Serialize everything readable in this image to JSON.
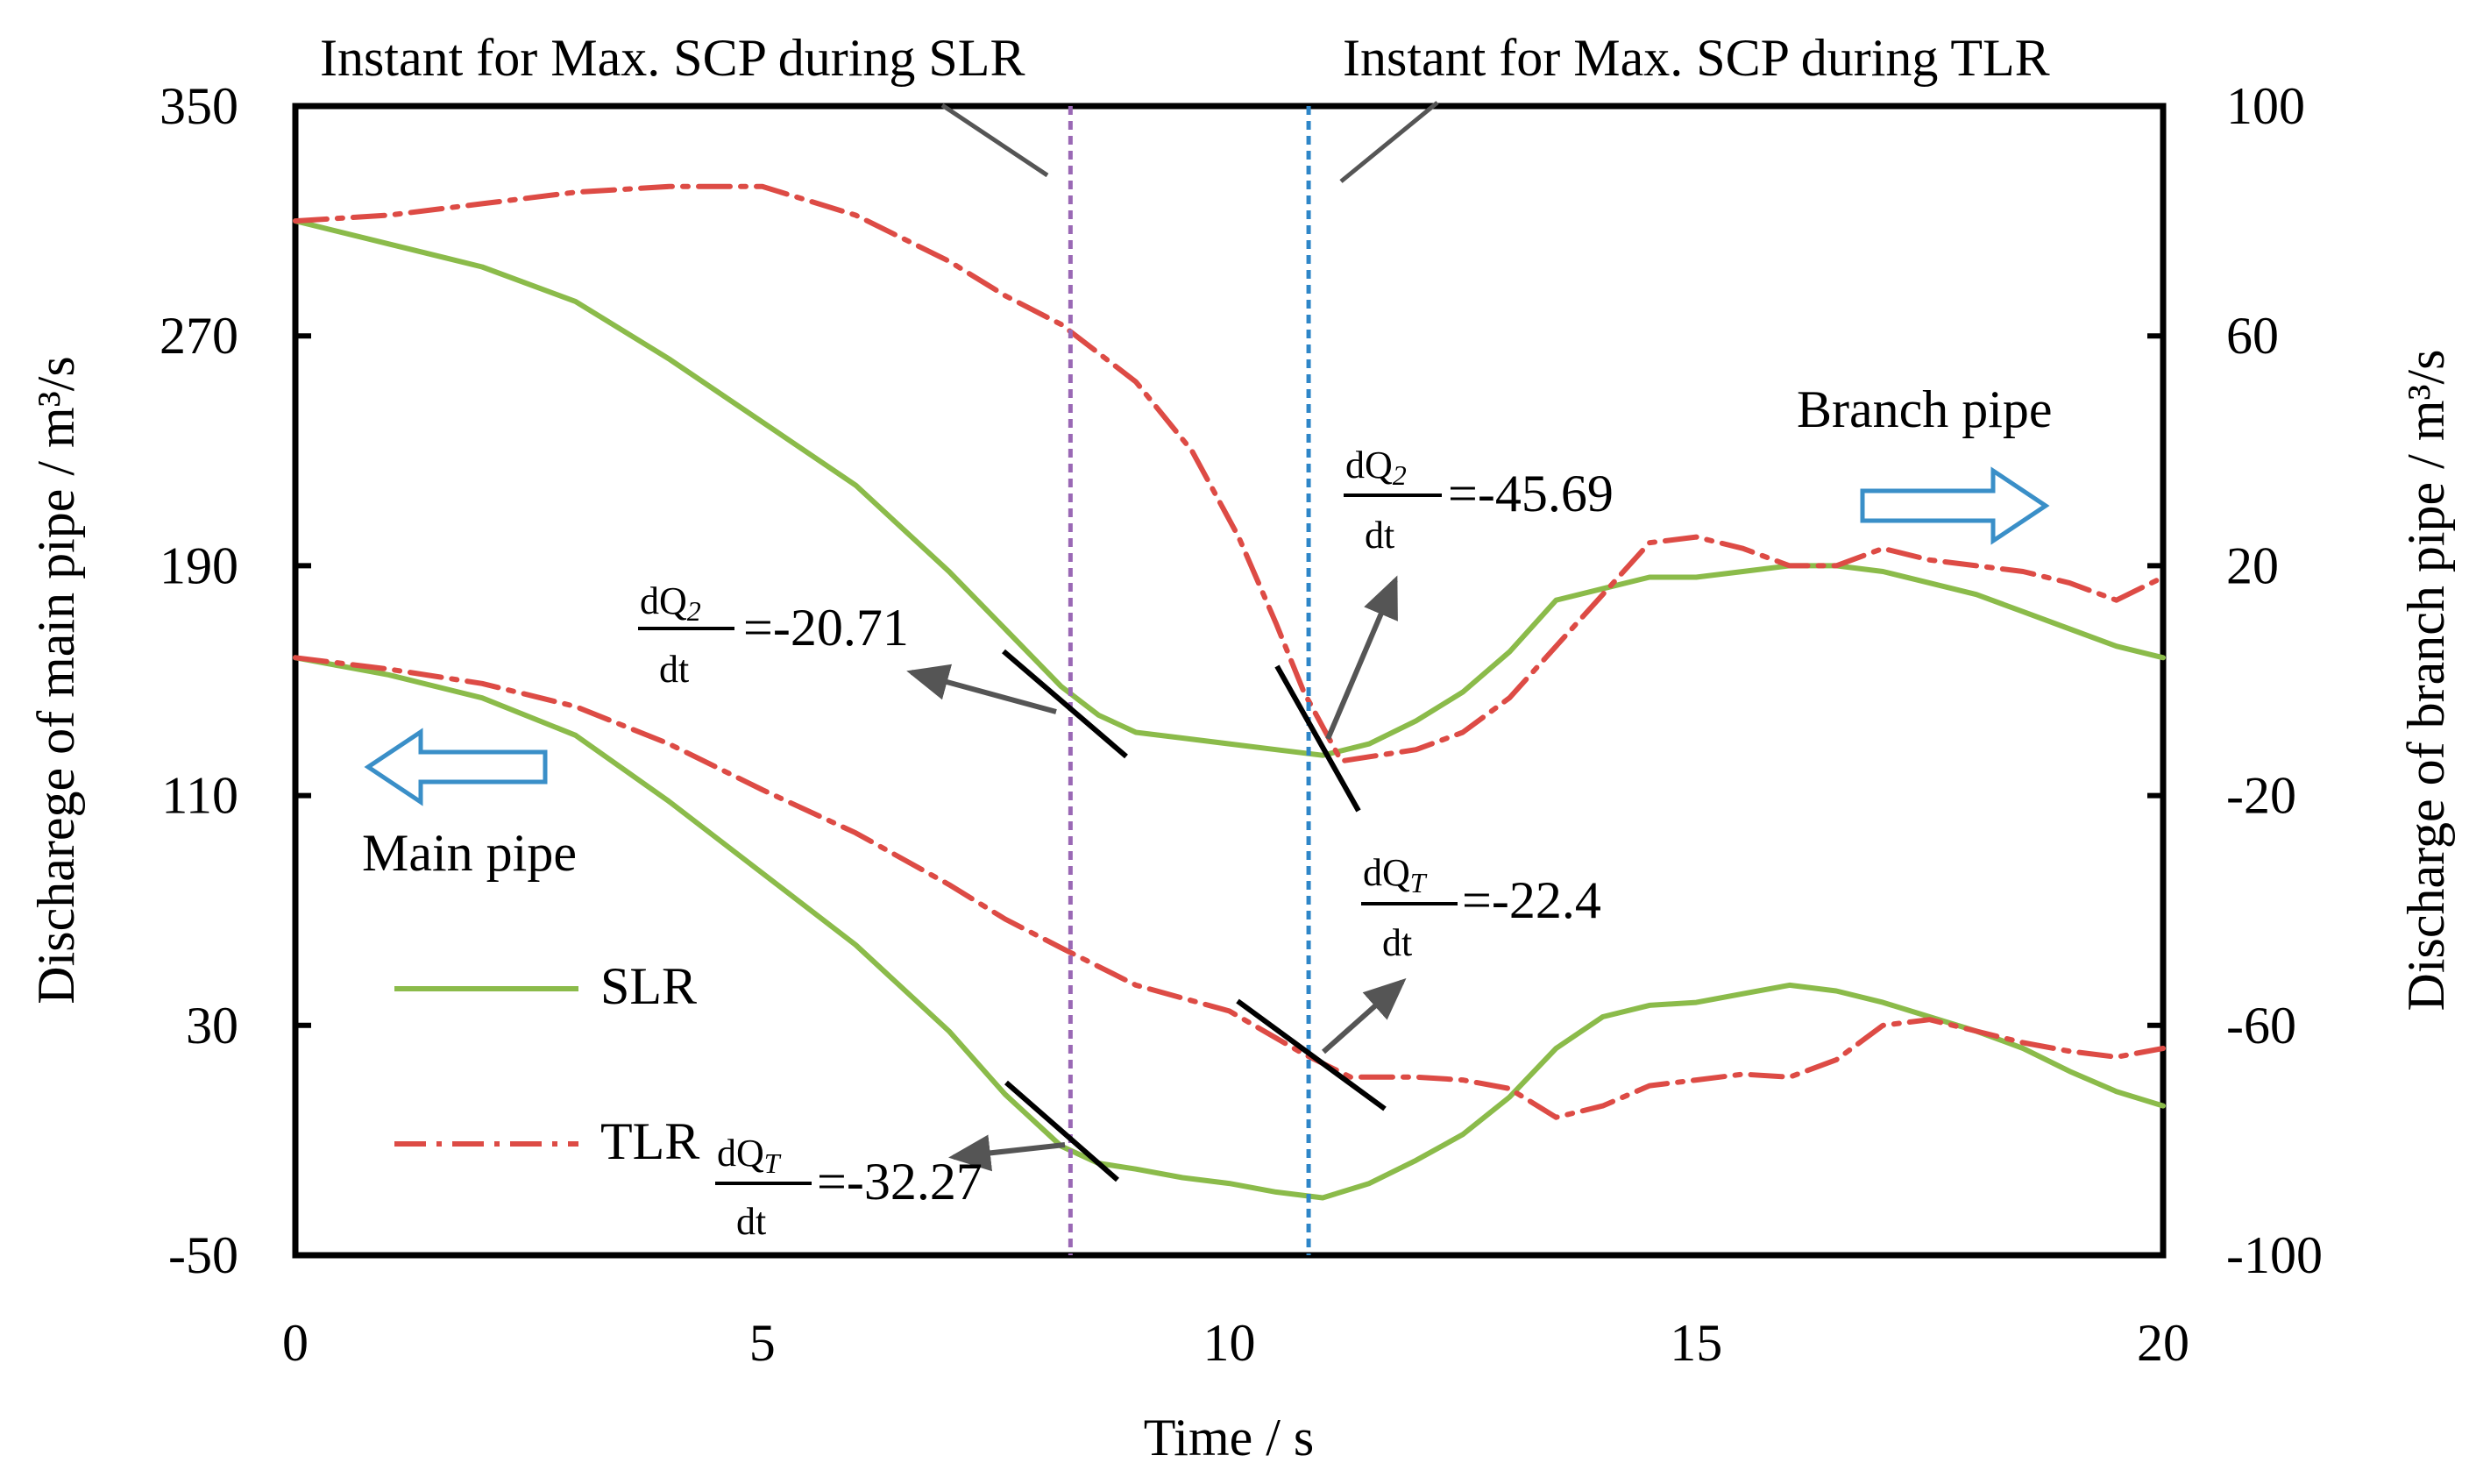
{
  "chart_data": {
    "type": "line",
    "xlabel": "Time / s",
    "ylabel_left": "Discharege of main pipe / m³/s",
    "ylabel_right": "Discharge of branch pipe / m³/s",
    "xlim": [
      0,
      20
    ],
    "ylim_left": [
      -50,
      350
    ],
    "ylim_right": [
      -100,
      100
    ],
    "x_ticks": [
      "0",
      "5",
      "10",
      "15",
      "20"
    ],
    "y_left_ticks": [
      "350",
      "270",
      "190",
      "110",
      "30",
      "-50"
    ],
    "y_right_ticks": [
      "100",
      "60",
      "20",
      "-20",
      "-60",
      "-100"
    ],
    "colors": {
      "slr": "#8bbb4a",
      "tlr": "#dd4b45",
      "slr_marker": "#9a68b5",
      "tlr_marker": "#2e86c8",
      "arrow": "#555555",
      "block_arrow": "#3a8fc8"
    },
    "series": [
      {
        "name": "SLR",
        "axis": "left",
        "style": "solid",
        "x": [
          0,
          1,
          2,
          3,
          4,
          5,
          6,
          7,
          7.6,
          8.2,
          8.6,
          9,
          9.5,
          10,
          10.5,
          11,
          11.5,
          12,
          12.5,
          13,
          13.5,
          14,
          14.5,
          15,
          15.5,
          16,
          16.5,
          17,
          17.5,
          18,
          18.5,
          19,
          19.5,
          20
        ],
        "values": [
          158,
          152,
          144,
          131,
          108,
          83,
          58,
          28,
          6,
          -12,
          -18,
          -20,
          -23,
          -25,
          -28,
          -30,
          -25,
          -17,
          -8,
          5,
          22,
          33,
          37,
          38,
          41,
          44,
          42,
          38,
          33,
          28,
          22,
          14,
          7,
          2
        ]
      },
      {
        "name": "TLR",
        "axis": "left",
        "style": "dash-dot",
        "x": [
          0,
          1,
          2,
          3,
          4,
          5,
          6,
          7,
          7.6,
          8.2,
          9,
          10,
          10.8,
          11.3,
          12,
          12.5,
          13,
          13.5,
          14,
          14.5,
          15,
          15.5,
          16,
          16.5,
          17,
          17.5,
          18,
          18.5,
          19,
          19.5,
          20
        ],
        "values": [
          158,
          154,
          149,
          141,
          128,
          112,
          97,
          79,
          67,
          57,
          44,
          35,
          20,
          12,
          12,
          11,
          8,
          -2,
          2,
          9,
          11,
          13,
          12,
          18,
          30,
          32,
          28,
          24,
          21,
          19,
          22
        ]
      },
      {
        "name": "SLR",
        "axis": "right",
        "style": "solid",
        "x": [
          0,
          1,
          2,
          3,
          4,
          5,
          6,
          7,
          7.6,
          8.2,
          8.6,
          9,
          9.5,
          10,
          10.5,
          11,
          11.5,
          12,
          12.5,
          13,
          13.5,
          14,
          14.5,
          15,
          15.5,
          16,
          16.5,
          17,
          17.5,
          18,
          18.5,
          19,
          19.5,
          20
        ],
        "values": [
          80,
          76,
          72,
          66,
          56,
          45,
          34,
          19,
          9,
          -1,
          -6,
          -9,
          -10,
          -11,
          -12,
          -13,
          -11,
          -7,
          -2,
          5,
          14,
          16,
          18,
          18,
          19,
          20,
          20,
          19,
          17,
          15,
          12,
          9,
          6,
          4
        ]
      },
      {
        "name": "TLR",
        "axis": "right",
        "style": "dash-dot",
        "x": [
          0,
          1,
          2,
          3,
          4,
          5,
          6,
          7,
          7.6,
          8.2,
          9,
          9.6,
          10.1,
          10.5,
          10.8,
          11.2,
          11.6,
          12,
          12.5,
          13,
          13.5,
          14,
          14.5,
          15,
          15.5,
          16,
          16.5,
          17,
          17.5,
          18,
          18.5,
          19,
          19.5,
          20
        ],
        "values": [
          80,
          81,
          83,
          85,
          86,
          86,
          81,
          73,
          67,
          62,
          52,
          40,
          25,
          10,
          -2,
          -14,
          -13,
          -12,
          -9,
          -3,
          6,
          15,
          24,
          25,
          23,
          20,
          20,
          23,
          21,
          20,
          19,
          17,
          14,
          18
        ]
      }
    ],
    "vertical_markers": [
      {
        "x": 8.3,
        "label": "Instant for Max. SCP during SLR"
      },
      {
        "x": 10.85,
        "label": "Instant for Max. SCP during TLR"
      }
    ],
    "slopes": [
      {
        "symbol": "dQ2/dt",
        "num": "dQ",
        "sub": "2",
        "den": "dt",
        "value": "=-20.71"
      },
      {
        "symbol": "dQ2/dt",
        "num": "dQ",
        "sub": "2",
        "den": "dt",
        "value": "=-45.69"
      },
      {
        "symbol": "dQT/dt",
        "num": "dQ",
        "sub": "T",
        "den": "dt",
        "value": "=-22.4"
      },
      {
        "symbol": "dQT/dt",
        "num": "dQ",
        "sub": "T",
        "den": "dt",
        "value": "=-32.27"
      }
    ],
    "pipe_labels": {
      "main": "Main pipe",
      "branch": "Branch pipe"
    },
    "legend": [
      "SLR",
      "TLR"
    ]
  }
}
